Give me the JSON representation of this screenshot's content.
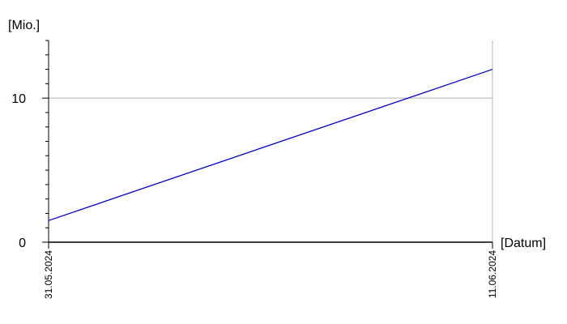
{
  "chart_data": {
    "type": "line",
    "title": "",
    "xlabel": "[Datum]",
    "ylabel": "[Mio.]",
    "x_ticks": [
      "31.05.2024",
      "11.06.2024"
    ],
    "y_ticks": [
      0,
      10
    ],
    "ylim": [
      0,
      14
    ],
    "grid": "horizontal at 10",
    "series": [
      {
        "x": [
          "31.05.2024",
          "11.06.2024"
        ],
        "values": [
          1.5,
          12
        ],
        "color": "#0000cc"
      }
    ]
  }
}
